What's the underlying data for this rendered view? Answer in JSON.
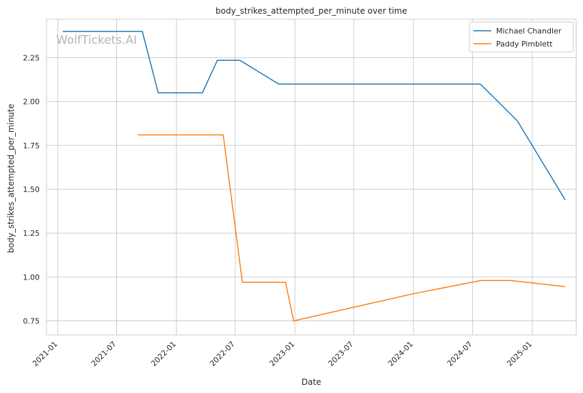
{
  "chart_data": {
    "type": "line",
    "title": "body_strikes_attempted_per_minute over time",
    "xlabel": "Date",
    "ylabel": "body_strikes_attempted_per_minute",
    "watermark": "WolfTickets.AI",
    "x_ticks": [
      "2021-01",
      "2021-07",
      "2022-01",
      "2022-07",
      "2023-01",
      "2023-07",
      "2024-01",
      "2024-07",
      "2025-01"
    ],
    "y_ticks": [
      "0.75",
      "1.00",
      "1.25",
      "1.50",
      "1.75",
      "2.00",
      "2.25"
    ],
    "ylim": [
      0.67,
      2.47
    ],
    "xlim": [
      "2020-11-27",
      "2025-05-16"
    ],
    "grid": true,
    "legend_position": "top-right",
    "series": [
      {
        "name": "Michael Chandler",
        "color": "#1f77b4",
        "points": [
          {
            "x": "2021-01-16",
            "y": 2.4
          },
          {
            "x": "2021-09-18",
            "y": 2.4
          },
          {
            "x": "2021-11-06",
            "y": 2.05
          },
          {
            "x": "2022-03-22",
            "y": 2.05
          },
          {
            "x": "2022-05-07",
            "y": 2.235
          },
          {
            "x": "2022-07-16",
            "y": 2.235
          },
          {
            "x": "2022-11-12",
            "y": 2.1
          },
          {
            "x": "2024-07-25",
            "y": 2.1
          },
          {
            "x": "2024-11-16",
            "y": 1.89
          },
          {
            "x": "2025-04-12",
            "y": 1.44
          }
        ]
      },
      {
        "name": "Paddy Pimblett",
        "color": "#ff7f0e",
        "points": [
          {
            "x": "2021-09-04",
            "y": 1.81
          },
          {
            "x": "2022-05-25",
            "y": 1.81
          },
          {
            "x": "2022-07-23",
            "y": 0.97
          },
          {
            "x": "2022-12-03",
            "y": 0.97
          },
          {
            "x": "2022-12-28",
            "y": 0.75
          },
          {
            "x": "2024-01-01",
            "y": 0.905
          },
          {
            "x": "2024-07-27",
            "y": 0.98
          },
          {
            "x": "2024-10-27",
            "y": 0.98
          },
          {
            "x": "2025-04-12",
            "y": 0.945
          }
        ]
      }
    ]
  }
}
